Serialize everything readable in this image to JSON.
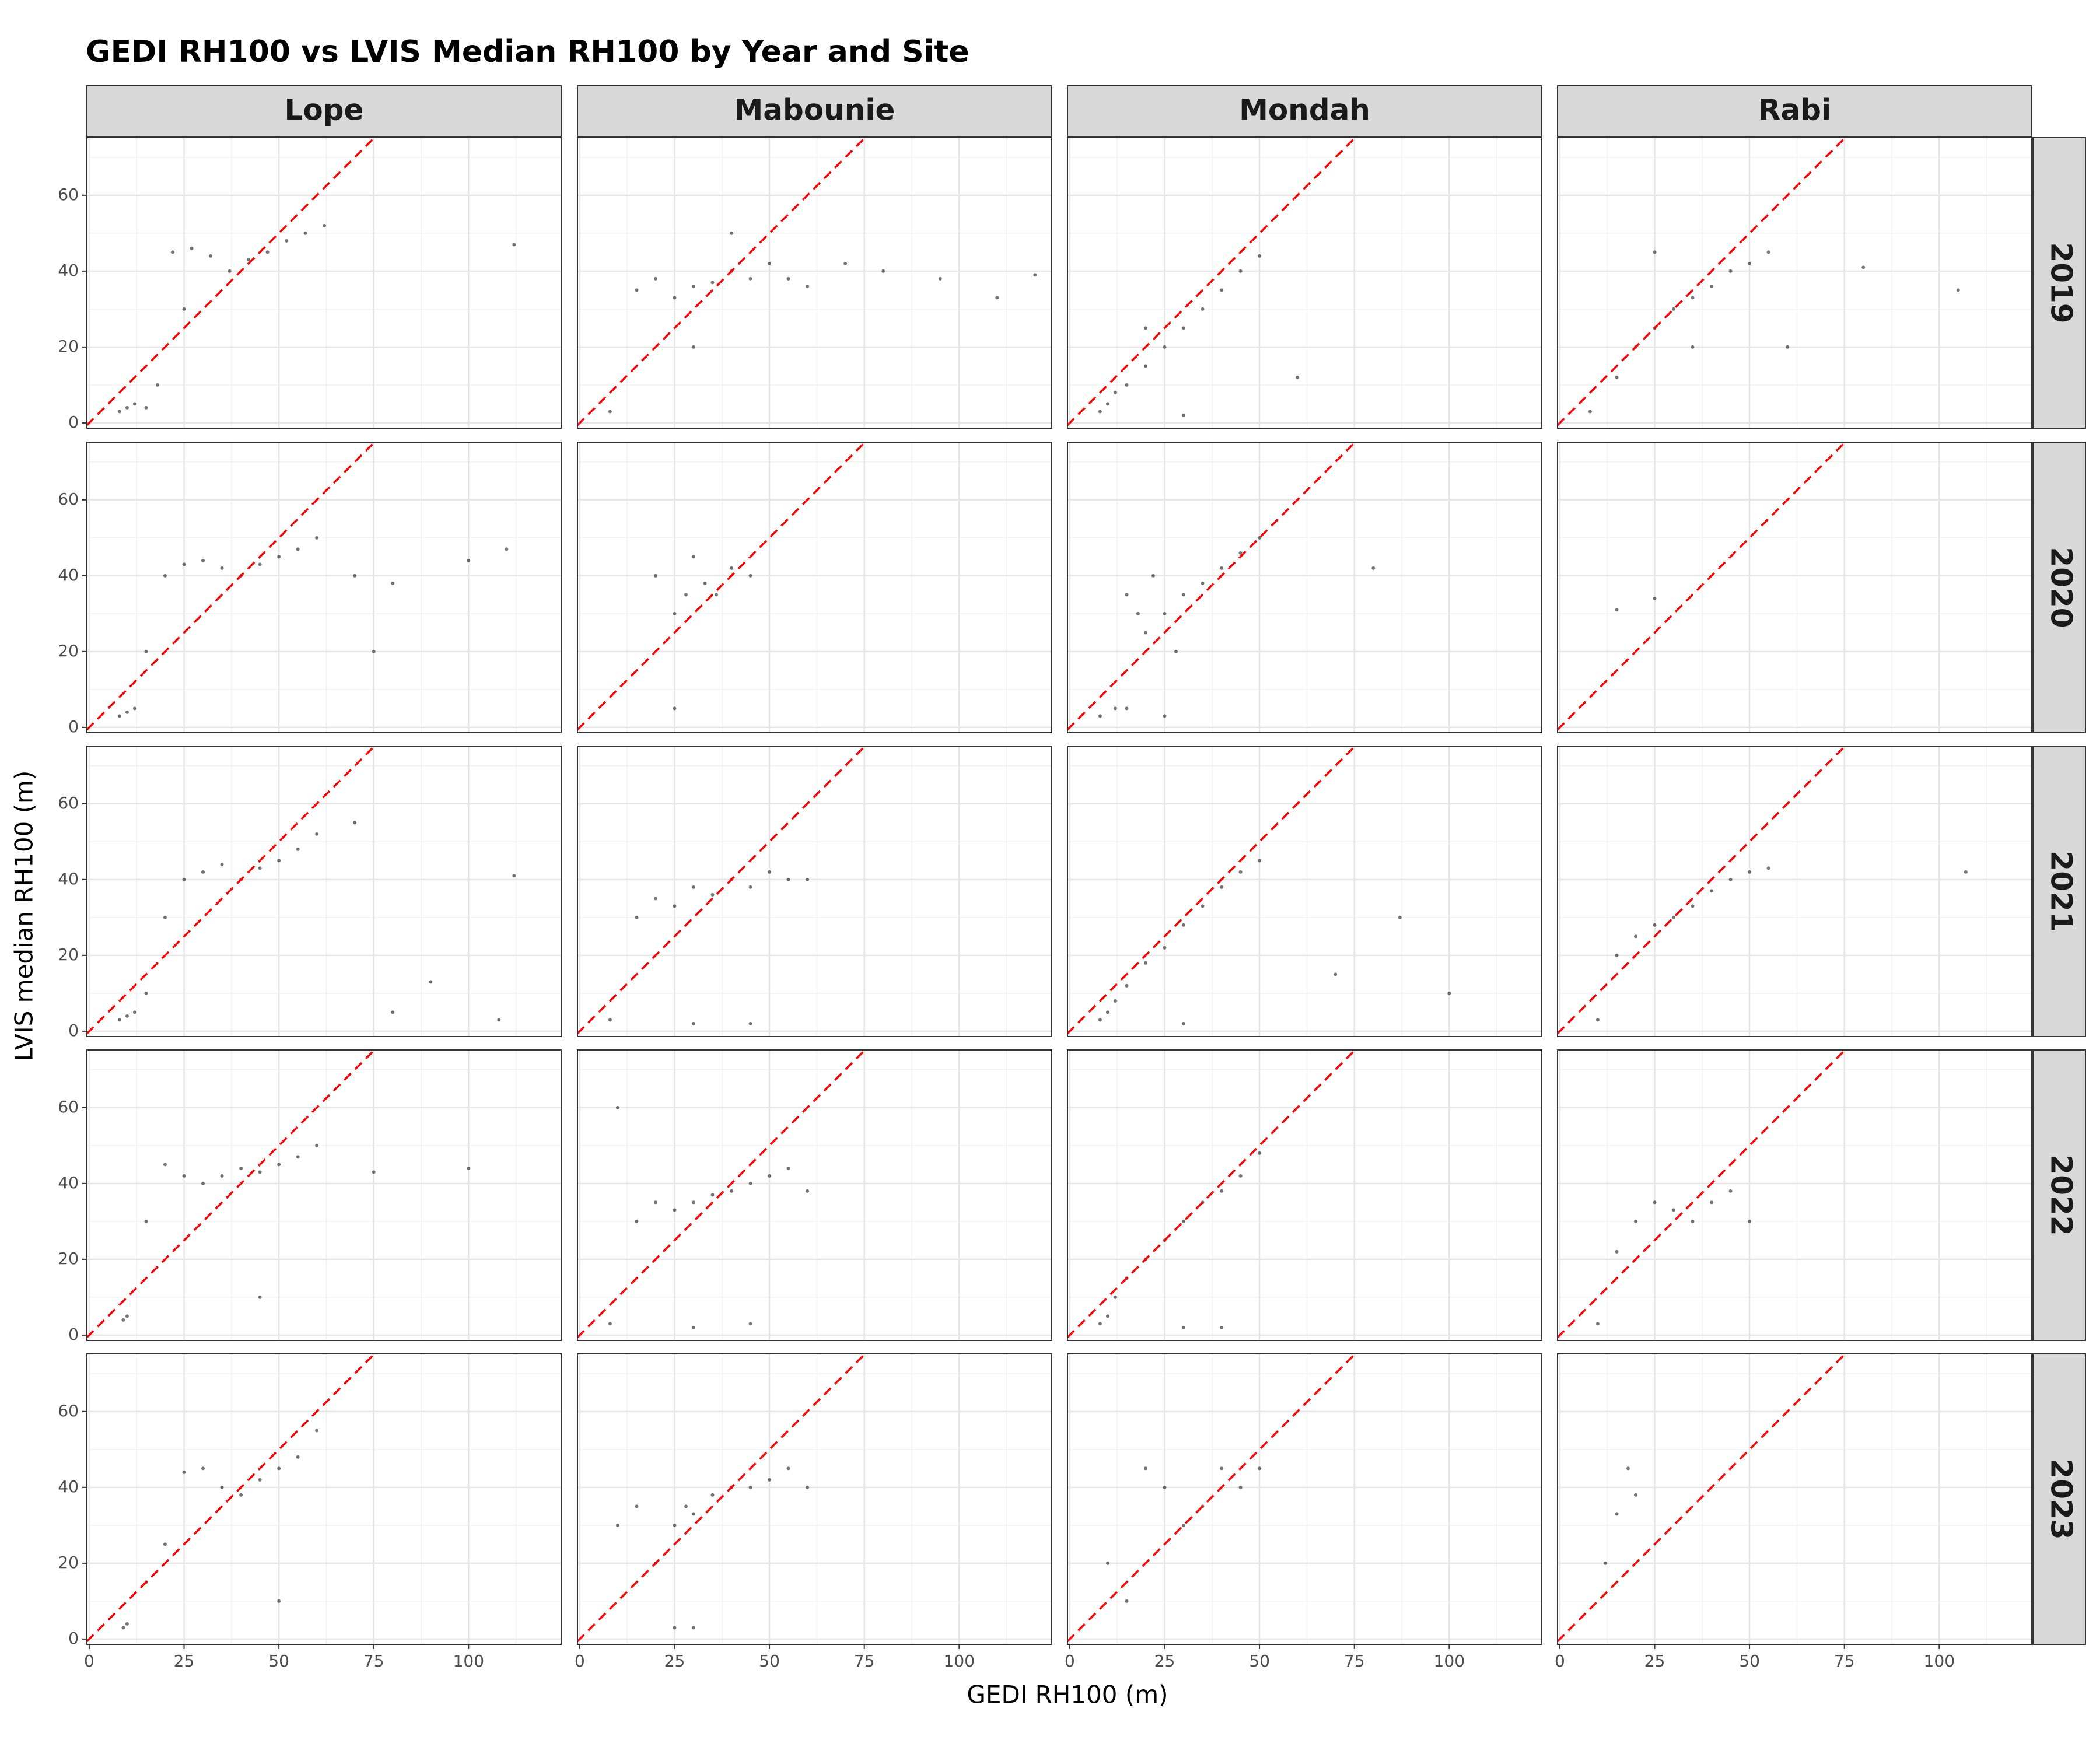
{
  "chart_data": {
    "type": "scatter",
    "title": "GEDI RH100 vs LVIS Median RH100 by Year and Site",
    "x_label": "GEDI RH100 (m)",
    "y_label": "LVIS median RH100 (m)",
    "columns": [
      "Lope",
      "Mabounie",
      "Mondah",
      "Rabi"
    ],
    "xlim": [
      -0.6,
      124.4
    ],
    "ylim": [
      -1.4,
      75.2
    ],
    "xticks": [
      0,
      25,
      50,
      75,
      100
    ],
    "yticks": [
      0,
      20,
      40,
      60
    ],
    "grid": true,
    "minor_grid": true,
    "point_color": "#000000",
    "reference_line": {
      "slope": 1,
      "intercept": 0,
      "color": "#ff0000"
    },
    "rows": [
      {
        "label": "2019",
        "panels": [
          {
            "x": [
              8,
              10,
              12,
              15,
              18,
              22,
              27,
              32,
              37,
              42,
              47,
              52,
              57,
              62,
              25,
              112
            ],
            "y": [
              3,
              4,
              5,
              4,
              10,
              45,
              46,
              44,
              40,
              43,
              45,
              48,
              50,
              52,
              30,
              47
            ]
          },
          {
            "x": [
              8,
              15,
              20,
              25,
              30,
              35,
              40,
              45,
              50,
              55,
              60,
              70,
              80,
              95,
              110,
              120,
              30,
              40
            ],
            "y": [
              3,
              35,
              38,
              33,
              36,
              37,
              40,
              38,
              42,
              38,
              36,
              42,
              40,
              38,
              33,
              39,
              20,
              50
            ]
          },
          {
            "x": [
              8,
              10,
              12,
              15,
              20,
              25,
              30,
              35,
              40,
              45,
              50,
              30,
              20,
              60
            ],
            "y": [
              3,
              5,
              8,
              10,
              15,
              20,
              25,
              30,
              35,
              40,
              44,
              2,
              25,
              12
            ]
          },
          {
            "x": [
              8,
              15,
              20,
              25,
              30,
              35,
              40,
              45,
              50,
              55,
              80,
              105,
              25,
              35,
              60
            ],
            "y": [
              3,
              12,
              20,
              25,
              30,
              33,
              36,
              40,
              42,
              45,
              41,
              35,
              45,
              20,
              20
            ]
          }
        ]
      },
      {
        "label": "2020",
        "panels": [
          {
            "x": [
              8,
              10,
              12,
              15,
              20,
              25,
              30,
              35,
              40,
              45,
              50,
              55,
              60,
              70,
              80,
              100,
              110,
              75
            ],
            "y": [
              3,
              4,
              5,
              20,
              40,
              43,
              44,
              42,
              40,
              43,
              45,
              47,
              50,
              40,
              38,
              44,
              47,
              20
            ]
          },
          {
            "x": [
              20,
              25,
              28,
              30,
              33,
              36,
              40,
              45,
              25
            ],
            "y": [
              40,
              30,
              35,
              45,
              38,
              35,
              42,
              40,
              5
            ]
          },
          {
            "x": [
              8,
              12,
              15,
              18,
              20,
              22,
              25,
              28,
              30,
              35,
              40,
              45,
              50,
              80,
              15,
              25
            ],
            "y": [
              3,
              5,
              35,
              30,
              25,
              40,
              30,
              20,
              35,
              38,
              42,
              46,
              50,
              42,
              5,
              3
            ]
          },
          {
            "x": [
              15,
              25
            ],
            "y": [
              31,
              34
            ]
          }
        ]
      },
      {
        "label": "2021",
        "panels": [
          {
            "x": [
              8,
              10,
              12,
              15,
              20,
              25,
              30,
              35,
              40,
              45,
              50,
              55,
              60,
              70,
              80,
              90,
              112,
              108
            ],
            "y": [
              3,
              4,
              5,
              10,
              30,
              40,
              42,
              44,
              40,
              43,
              45,
              48,
              52,
              55,
              5,
              13,
              41,
              3
            ]
          },
          {
            "x": [
              8,
              15,
              20,
              25,
              30,
              35,
              40,
              45,
              50,
              55,
              30,
              45,
              60
            ],
            "y": [
              3,
              30,
              35,
              33,
              38,
              36,
              40,
              38,
              42,
              40,
              2,
              2,
              40
            ]
          },
          {
            "x": [
              8,
              10,
              12,
              15,
              20,
              25,
              30,
              35,
              40,
              45,
              50,
              30,
              70,
              87,
              100
            ],
            "y": [
              3,
              5,
              8,
              12,
              18,
              22,
              28,
              33,
              38,
              42,
              45,
              2,
              15,
              30,
              10
            ]
          },
          {
            "x": [
              10,
              15,
              20,
              25,
              30,
              35,
              40,
              45,
              50,
              55,
              107
            ],
            "y": [
              3,
              20,
              25,
              28,
              30,
              33,
              37,
              40,
              42,
              43,
              42
            ]
          }
        ]
      },
      {
        "label": "2022",
        "panels": [
          {
            "x": [
              9,
              10,
              15,
              20,
              25,
              30,
              35,
              40,
              45,
              50,
              55,
              60,
              75,
              100,
              45
            ],
            "y": [
              4,
              5,
              30,
              45,
              42,
              40,
              42,
              44,
              43,
              45,
              47,
              50,
              43,
              44,
              10
            ]
          },
          {
            "x": [
              8,
              15,
              20,
              25,
              30,
              35,
              40,
              45,
              50,
              55,
              60,
              30,
              45,
              10
            ],
            "y": [
              3,
              30,
              35,
              33,
              35,
              37,
              38,
              40,
              42,
              44,
              38,
              2,
              3,
              60
            ]
          },
          {
            "x": [
              8,
              10,
              12,
              15,
              20,
              25,
              30,
              35,
              40,
              45,
              50,
              30,
              40
            ],
            "y": [
              3,
              5,
              10,
              15,
              20,
              25,
              30,
              35,
              38,
              42,
              48,
              2,
              2
            ]
          },
          {
            "x": [
              10,
              15,
              20,
              25,
              30,
              35,
              40,
              45,
              50
            ],
            "y": [
              3,
              22,
              30,
              35,
              33,
              30,
              35,
              38,
              30
            ]
          }
        ]
      },
      {
        "label": "2023",
        "panels": [
          {
            "x": [
              9,
              10,
              15,
              20,
              25,
              30,
              35,
              40,
              45,
              50,
              55,
              60,
              50
            ],
            "y": [
              3,
              4,
              15,
              25,
              44,
              45,
              40,
              38,
              42,
              45,
              48,
              55,
              10
            ]
          },
          {
            "x": [
              10,
              15,
              20,
              25,
              28,
              30,
              35,
              40,
              45,
              50,
              55,
              60,
              25,
              30
            ],
            "y": [
              30,
              35,
              20,
              30,
              35,
              33,
              38,
              40,
              40,
              42,
              45,
              40,
              3,
              3
            ]
          },
          {
            "x": [
              10,
              15,
              20,
              25,
              30,
              35,
              40,
              45,
              50
            ],
            "y": [
              20,
              10,
              45,
              40,
              30,
              35,
              45,
              40,
              45
            ]
          },
          {
            "x": [
              12,
              15,
              18,
              20
            ],
            "y": [
              20,
              33,
              45,
              38
            ]
          }
        ]
      }
    ]
  }
}
